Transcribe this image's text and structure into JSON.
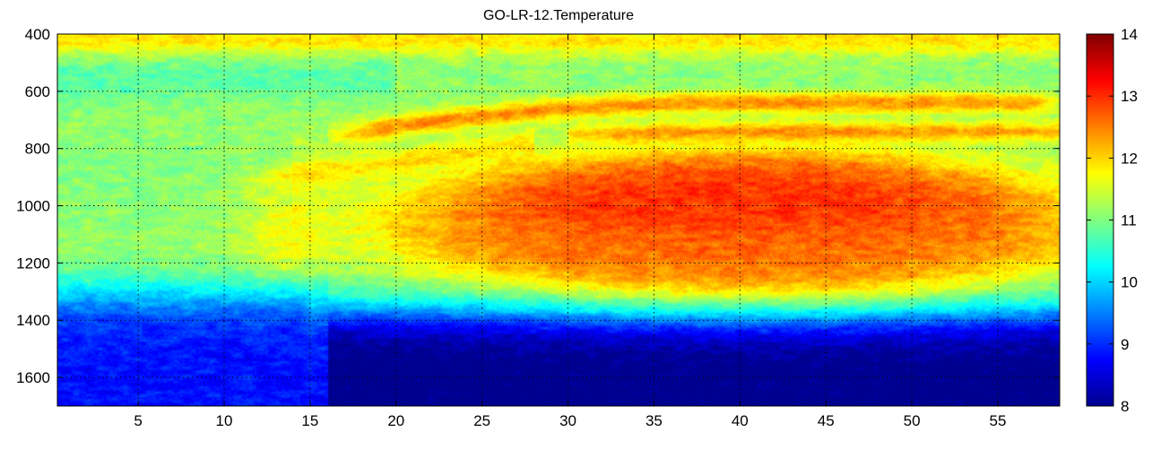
{
  "chart_data": {
    "type": "heatmap",
    "title": "GO-LR-12.Temperature",
    "xlabel": "",
    "ylabel": "",
    "xlim": [
      0.3,
      58.6
    ],
    "ylim": [
      400,
      1700
    ],
    "y_reversed": true,
    "x_ticks": [
      5,
      10,
      15,
      20,
      25,
      30,
      35,
      40,
      45,
      50,
      55
    ],
    "x_tick_labels": [
      "5",
      "10",
      "15",
      "20",
      "25",
      "30",
      "35",
      "40",
      "45",
      "50",
      "55"
    ],
    "y_ticks": [
      400,
      600,
      800,
      1000,
      1200,
      1400,
      1600
    ],
    "y_tick_labels": [
      "400",
      "600",
      "800",
      "1000",
      "1200",
      "1400",
      "1600"
    ],
    "grid": true,
    "colorbar": {
      "position": "right",
      "colormap": "jet",
      "range": [
        8,
        14
      ],
      "ticks": [
        8,
        9,
        10,
        11,
        12,
        13,
        14
      ],
      "tick_labels": [
        "8",
        "9",
        "10",
        "11",
        "12",
        "13",
        "14"
      ]
    },
    "z_description_regions": [
      {
        "region": "background above 1300",
        "value": 11.3
      },
      {
        "region": "top band 400-450",
        "value": 12.0
      },
      {
        "region": "warm core x 20-57, y 850-1350",
        "value": 12.6
      },
      {
        "region": "upper warm streak y 600-800",
        "value": 12.8
      },
      {
        "region": "lower cold zone below 1450",
        "value": 8.0
      }
    ]
  }
}
